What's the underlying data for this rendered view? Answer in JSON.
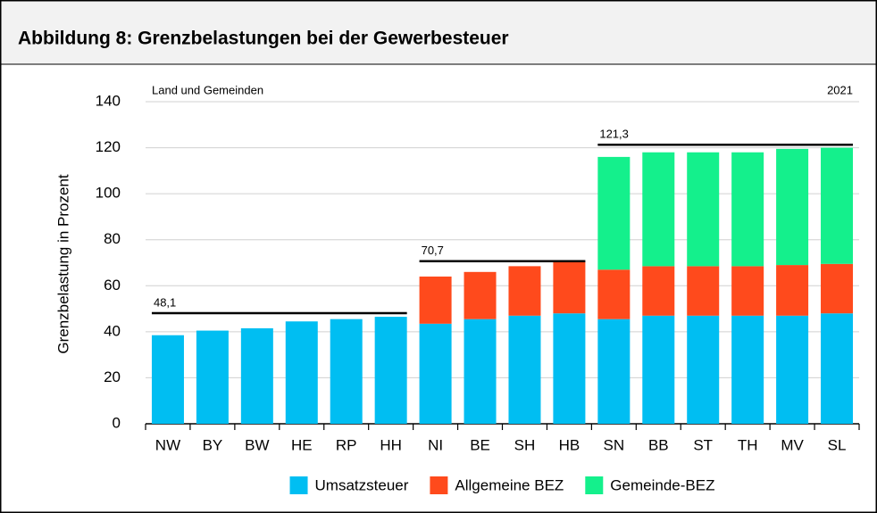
{
  "header": {
    "title": "Abbildung 8: Grenzbelastungen bei der Gewerbesteuer"
  },
  "chart_data": {
    "type": "stacked-bar",
    "subtitle_left": "Land und Gemeinden",
    "subtitle_right": "2021",
    "y_label": "Grenzbelastung in Prozent",
    "categories": [
      "NW",
      "BY",
      "BW",
      "HE",
      "RP",
      "HH",
      "NI",
      "BE",
      "SH",
      "HB",
      "SN",
      "BB",
      "ST",
      "TH",
      "MV",
      "SL"
    ],
    "series": [
      {
        "name": "Umsatzsteuer",
        "color": "#00bef2",
        "values": [
          38.5,
          40.5,
          41.5,
          44.5,
          45.5,
          46.5,
          43.5,
          45.5,
          47,
          48,
          45.5,
          47,
          47,
          47,
          47,
          48
        ]
      },
      {
        "name": "Allgemeine BEZ",
        "color": "#ff4a1c",
        "values": [
          null,
          null,
          null,
          null,
          null,
          null,
          20.5,
          20.5,
          21.5,
          22.5,
          21.5,
          21.5,
          21.5,
          21.5,
          22,
          21.5
        ]
      },
      {
        "name": "Gemeinde-BEZ",
        "color": "#14f08c",
        "values": [
          null,
          null,
          null,
          null,
          null,
          null,
          null,
          null,
          null,
          null,
          49,
          49.5,
          49.5,
          49.5,
          50.5,
          50.5
        ]
      }
    ],
    "reference_lines": [
      {
        "value": 48.1,
        "label": "48,1",
        "from": "NW",
        "to": "HH"
      },
      {
        "value": 70.7,
        "label": "70,7",
        "from": "NI",
        "to": "HB"
      },
      {
        "value": 121.3,
        "label": "121,3",
        "from": "SN",
        "to": "SL"
      }
    ],
    "ylim": [
      0,
      140
    ],
    "yticks": [
      0,
      20,
      40,
      60,
      80,
      100,
      120,
      140
    ],
    "grid": true
  }
}
